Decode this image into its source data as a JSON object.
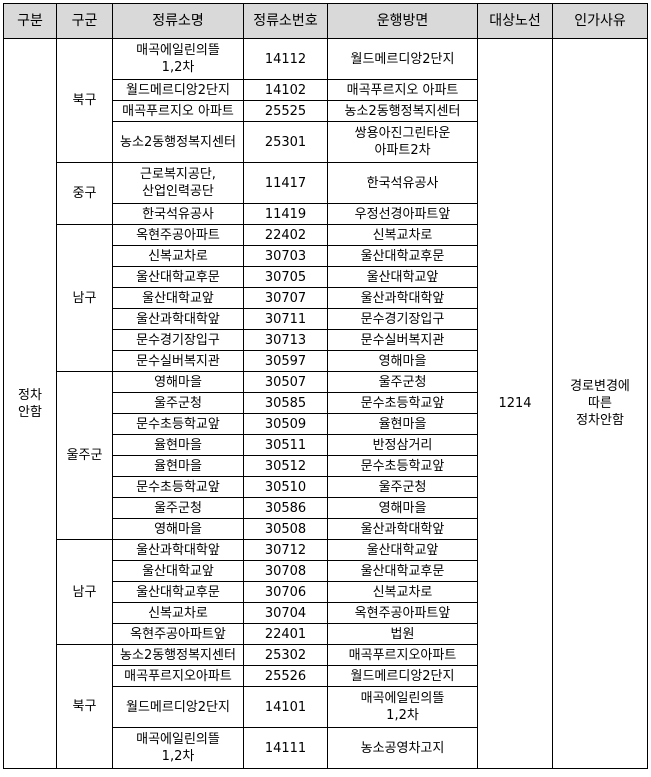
{
  "table": {
    "header": [
      "구분",
      "구군",
      "정류소명",
      "정류소번호",
      "운행방면",
      "대상노선",
      "인가사유"
    ],
    "category": "정차\n안함",
    "route": "1214",
    "reason": "경로변경에\n따른\n정차안함",
    "groups": [
      {
        "district": "북구",
        "rows": [
          [
            "매곡에일린의뜰\n1,2차",
            "14112",
            "월드메르디앙2단지"
          ],
          [
            "월드메르디앙2단지",
            "14102",
            "매곡푸르지오 아파트"
          ],
          [
            "매곡푸르지오 아파트",
            "25525",
            "농소2동행정복지센터"
          ],
          [
            "농소2동행정복지센터",
            "25301",
            "쌍용아진그린타운\n아파트2차"
          ]
        ]
      },
      {
        "district": "중구",
        "rows": [
          [
            "근로복지공단,\n산업인력공단",
            "11417",
            "한국석유공사"
          ],
          [
            "한국석유공사",
            "11419",
            "우정선경아파트앞"
          ]
        ]
      },
      {
        "district": "남구",
        "rows": [
          [
            "옥현주공아파트",
            "22402",
            "신복교차로"
          ],
          [
            "신복교차로",
            "30703",
            "울산대학교후문"
          ],
          [
            "울산대학교후문",
            "30705",
            "울산대학교앞"
          ],
          [
            "울산대학교앞",
            "30707",
            "울산과학대학앞"
          ],
          [
            "울산과학대학앞",
            "30711",
            "문수경기장입구"
          ],
          [
            "문수경기장입구",
            "30713",
            "문수실버복지관"
          ],
          [
            "문수실버복지관",
            "30597",
            "영해마을"
          ]
        ]
      },
      {
        "district": "울주군",
        "rows": [
          [
            "영해마을",
            "30507",
            "울주군청"
          ],
          [
            "울주군청",
            "30585",
            "문수초등학교앞"
          ],
          [
            "문수초등학교앞",
            "30509",
            "율현마을"
          ],
          [
            "율현마을",
            "30511",
            "반정삼거리"
          ],
          [
            "율현마을",
            "30512",
            "문수초등학교앞"
          ],
          [
            "문수초등학교앞",
            "30510",
            "울주군청"
          ],
          [
            "울주군청",
            "30586",
            "영해마을"
          ],
          [
            "영해마을",
            "30508",
            "울산과학대학앞"
          ]
        ]
      },
      {
        "district": "남구",
        "rows": [
          [
            "울산과학대학앞",
            "30712",
            "울산대학교앞"
          ],
          [
            "울산대학교앞",
            "30708",
            "울산대학교후문"
          ],
          [
            "울산대학교후문",
            "30706",
            "신복교차로"
          ],
          [
            "신복교차로",
            "30704",
            "옥현주공아파트앞"
          ],
          [
            "옥현주공아파트앞",
            "22401",
            "법원"
          ]
        ]
      },
      {
        "district": "북구",
        "rows": [
          [
            "농소2동행정복지센터",
            "25302",
            "매곡푸르지오아파트"
          ],
          [
            "매곡푸르지오아파트",
            "25526",
            "월드메르디앙2단지"
          ],
          [
            "월드메르디앙2단지",
            "14101",
            "매곡에일린의뜰\n1,2차"
          ],
          [
            "매곡에일린의뜰\n1,2차",
            "14111",
            "농소공영차고지"
          ]
        ]
      }
    ]
  }
}
